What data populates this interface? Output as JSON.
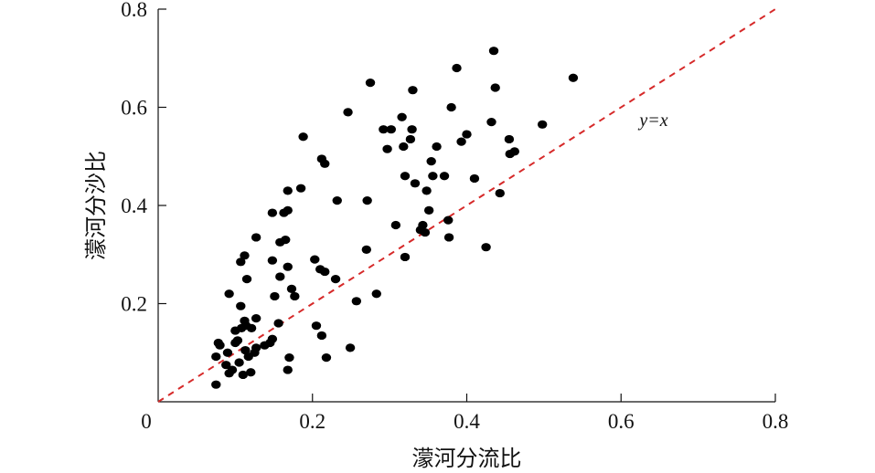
{
  "chart_data": {
    "type": "scatter",
    "xlabel": "濛河分流比",
    "ylabel": "濛河分沙比",
    "xlim": [
      0,
      0.8
    ],
    "ylim": [
      0,
      0.8
    ],
    "x_ticks": [
      "0.2",
      "0.4",
      "0.6",
      "0.8"
    ],
    "y_ticks": [
      "0.2",
      "0.4",
      "0.6",
      "0.8"
    ],
    "origin_label": "0",
    "grid": false,
    "marker_color": "#000000",
    "reference_line": {
      "label": "y=x",
      "style": "dashed",
      "color": "#d62a2a",
      "from": [
        0,
        0
      ],
      "to": [
        0.8,
        0.8
      ]
    },
    "points": [
      [
        0.075,
        0.035
      ],
      [
        0.088,
        0.075
      ],
      [
        0.092,
        0.058
      ],
      [
        0.096,
        0.065
      ],
      [
        0.105,
        0.08
      ],
      [
        0.11,
        0.055
      ],
      [
        0.12,
        0.06
      ],
      [
        0.125,
        0.1
      ],
      [
        0.075,
        0.092
      ],
      [
        0.08,
        0.115
      ],
      [
        0.078,
        0.12
      ],
      [
        0.09,
        0.1
      ],
      [
        0.1,
        0.12
      ],
      [
        0.103,
        0.125
      ],
      [
        0.113,
        0.105
      ],
      [
        0.117,
        0.092
      ],
      [
        0.127,
        0.11
      ],
      [
        0.1,
        0.145
      ],
      [
        0.108,
        0.15
      ],
      [
        0.114,
        0.155
      ],
      [
        0.121,
        0.15
      ],
      [
        0.127,
        0.17
      ],
      [
        0.112,
        0.165
      ],
      [
        0.107,
        0.195
      ],
      [
        0.092,
        0.22
      ],
      [
        0.115,
        0.25
      ],
      [
        0.107,
        0.285
      ],
      [
        0.112,
        0.298
      ],
      [
        0.127,
        0.335
      ],
      [
        0.138,
        0.115
      ],
      [
        0.145,
        0.12
      ],
      [
        0.148,
        0.128
      ],
      [
        0.156,
        0.16
      ],
      [
        0.151,
        0.215
      ],
      [
        0.158,
        0.255
      ],
      [
        0.168,
        0.275
      ],
      [
        0.173,
        0.23
      ],
      [
        0.177,
        0.215
      ],
      [
        0.148,
        0.288
      ],
      [
        0.158,
        0.325
      ],
      [
        0.165,
        0.33
      ],
      [
        0.148,
        0.385
      ],
      [
        0.163,
        0.385
      ],
      [
        0.168,
        0.39
      ],
      [
        0.168,
        0.43
      ],
      [
        0.185,
        0.435
      ],
      [
        0.188,
        0.54
      ],
      [
        0.168,
        0.065
      ],
      [
        0.17,
        0.09
      ],
      [
        0.205,
        0.155
      ],
      [
        0.212,
        0.135
      ],
      [
        0.218,
        0.09
      ],
      [
        0.203,
        0.29
      ],
      [
        0.21,
        0.27
      ],
      [
        0.216,
        0.265
      ],
      [
        0.23,
        0.25
      ],
      [
        0.212,
        0.495
      ],
      [
        0.216,
        0.485
      ],
      [
        0.232,
        0.41
      ],
      [
        0.246,
        0.59
      ],
      [
        0.249,
        0.11
      ],
      [
        0.257,
        0.205
      ],
      [
        0.27,
        0.31
      ],
      [
        0.271,
        0.41
      ],
      [
        0.275,
        0.65
      ],
      [
        0.283,
        0.22
      ],
      [
        0.292,
        0.555
      ],
      [
        0.297,
        0.515
      ],
      [
        0.302,
        0.555
      ],
      [
        0.308,
        0.36
      ],
      [
        0.316,
        0.58
      ],
      [
        0.318,
        0.52
      ],
      [
        0.32,
        0.46
      ],
      [
        0.32,
        0.295
      ],
      [
        0.327,
        0.535
      ],
      [
        0.329,
        0.555
      ],
      [
        0.33,
        0.635
      ],
      [
        0.333,
        0.445
      ],
      [
        0.34,
        0.35
      ],
      [
        0.343,
        0.36
      ],
      [
        0.346,
        0.345
      ],
      [
        0.348,
        0.43
      ],
      [
        0.351,
        0.39
      ],
      [
        0.354,
        0.49
      ],
      [
        0.356,
        0.46
      ],
      [
        0.361,
        0.52
      ],
      [
        0.371,
        0.46
      ],
      [
        0.376,
        0.37
      ],
      [
        0.377,
        0.335
      ],
      [
        0.38,
        0.6
      ],
      [
        0.387,
        0.68
      ],
      [
        0.393,
        0.53
      ],
      [
        0.4,
        0.545
      ],
      [
        0.41,
        0.455
      ],
      [
        0.425,
        0.315
      ],
      [
        0.432,
        0.57
      ],
      [
        0.435,
        0.715
      ],
      [
        0.437,
        0.64
      ],
      [
        0.443,
        0.425
      ],
      [
        0.455,
        0.535
      ],
      [
        0.456,
        0.505
      ],
      [
        0.462,
        0.51
      ],
      [
        0.498,
        0.565
      ],
      [
        0.538,
        0.66
      ]
    ]
  }
}
